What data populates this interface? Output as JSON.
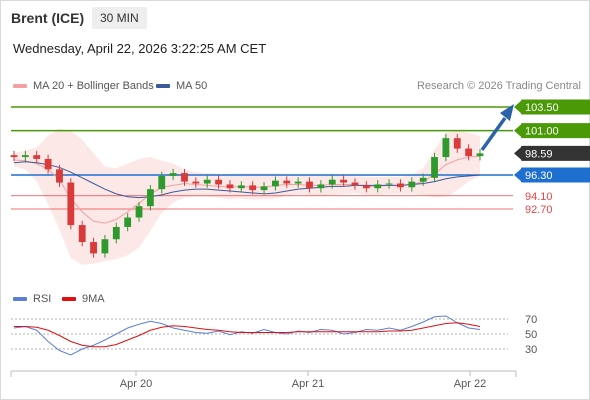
{
  "header": {
    "title": "Brent (ICE)",
    "interval": "30 MIN",
    "datetime": "Wednesday, April 22, 2026 3:22:25 AM CET"
  },
  "legend": {
    "ma20_label": "MA 20 + Bollinger Bands",
    "ma50_label": "MA 50",
    "copyright": "Research © 2026 Trading Central"
  },
  "rsi_legend": {
    "rsi_label": "RSI",
    "ma_label": "9MA"
  },
  "colors": {
    "resistance": "#4a9a08",
    "support": "#e84545",
    "pivot": "#1f6fd1",
    "current": "#333333",
    "candle_up": "#2e9a2e",
    "candle_down": "#d93a3a",
    "ma20": "#f2a0a0",
    "ma50": "#3a5a9a",
    "bollinger_fill": "#fde4e4",
    "arrow": "#2b62a8",
    "rsi": "#5b7fd6",
    "rsi_ma": "#e01010"
  },
  "chart_data": [
    {
      "type": "candlestick",
      "title": "Brent (ICE)",
      "interval": "30 MIN",
      "x_labels": [
        "Apr 20",
        "Apr 21",
        "Apr 22"
      ],
      "ylim": [
        87,
        106
      ],
      "levels": [
        {
          "label": "103.50",
          "value": 103.5,
          "kind": "resistance"
        },
        {
          "label": "101.00",
          "value": 101.0,
          "kind": "resistance"
        },
        {
          "label": "98.59",
          "value": 98.59,
          "kind": "current"
        },
        {
          "label": "96.30",
          "value": 96.3,
          "kind": "pivot"
        },
        {
          "label": "94.10",
          "value": 94.1,
          "kind": "support"
        },
        {
          "label": "92.70",
          "value": 92.7,
          "kind": "support"
        }
      ],
      "close_series": [
        98.2,
        98.4,
        98.0,
        96.9,
        95.5,
        91.0,
        89.2,
        88.0,
        89.5,
        90.8,
        91.8,
        93.0,
        94.8,
        96.2,
        96.5,
        95.6,
        95.4,
        95.8,
        95.3,
        94.9,
        95.2,
        94.7,
        95.1,
        95.7,
        95.4,
        95.6,
        94.9,
        95.3,
        95.8,
        95.5,
        95.2,
        94.9,
        95.3,
        95.4,
        95.0,
        95.6,
        96.0,
        98.2,
        100.2,
        99.1,
        98.3,
        98.59
      ],
      "ma20": [
        97.9,
        97.8,
        97.5,
        96.9,
        95.8,
        93.8,
        92.4,
        91.4,
        91.2,
        91.6,
        92.4,
        93.3,
        94.3,
        95.0,
        95.2,
        95.4,
        95.3,
        95.2,
        95.1,
        95.0,
        95.1,
        95.0,
        95.0,
        95.2,
        95.3,
        95.3,
        95.2,
        95.2,
        95.3,
        95.3,
        95.3,
        95.1,
        95.1,
        95.2,
        95.2,
        95.3,
        95.6,
        96.4,
        97.4,
        97.9,
        98.2,
        98.3
      ],
      "bollinger_upper": [
        98.6,
        98.9,
        99.2,
        100.5,
        101.2,
        101.0,
        100.0,
        98.6,
        97.2,
        97.0,
        97.5,
        98.0,
        98.2,
        97.8,
        97.5,
        96.9,
        96.6,
        96.5,
        96.4,
        96.4,
        96.5,
        96.5,
        96.5,
        96.5,
        96.4,
        96.3,
        96.3,
        96.3,
        96.4,
        96.3,
        96.2,
        96.1,
        96.1,
        96.1,
        96.1,
        96.3,
        97.0,
        99.0,
        100.8,
        101.0,
        100.8,
        100.4
      ],
      "bollinger_lower": [
        97.2,
        96.9,
        95.6,
        93.2,
        90.5,
        87.5,
        86.8,
        86.9,
        87.2,
        87.4,
        87.8,
        88.6,
        90.4,
        92.3,
        93.4,
        93.9,
        94.0,
        94.0,
        93.9,
        93.7,
        93.8,
        93.7,
        93.7,
        93.8,
        94.1,
        94.3,
        94.2,
        94.1,
        94.2,
        94.3,
        94.4,
        94.2,
        94.2,
        94.3,
        94.3,
        94.3,
        94.2,
        93.9,
        94.0,
        94.7,
        95.6,
        96.2
      ],
      "ma50": [
        97.6,
        97.7,
        97.6,
        97.4,
        97.1,
        96.6,
        96.0,
        95.4,
        94.8,
        94.3,
        94.0,
        93.9,
        94.0,
        94.2,
        94.5,
        94.7,
        94.8,
        94.8,
        94.7,
        94.6,
        94.5,
        94.4,
        94.3,
        94.4,
        94.6,
        94.8,
        94.9,
        95.0,
        95.1,
        95.1,
        95.2,
        95.2,
        95.2,
        95.2,
        95.2,
        95.3,
        95.4,
        95.6,
        95.9,
        96.1,
        96.2,
        96.3
      ]
    },
    {
      "type": "line",
      "title": "RSI",
      "ylim": [
        15,
        85
      ],
      "y_ticks": [
        "70",
        "50",
        "30"
      ],
      "series": [
        {
          "name": "RSI",
          "values": [
            58,
            60,
            55,
            40,
            28,
            22,
            30,
            35,
            42,
            50,
            58,
            63,
            67,
            64,
            58,
            55,
            52,
            51,
            54,
            49,
            53,
            51,
            56,
            52,
            50,
            54,
            52,
            56,
            55,
            50,
            52,
            56,
            55,
            58,
            55,
            60,
            66,
            73,
            74,
            65,
            58,
            56
          ]
        },
        {
          "name": "9MA",
          "values": [
            60,
            60,
            59,
            55,
            48,
            40,
            35,
            33,
            33,
            36,
            42,
            48,
            55,
            59,
            61,
            60,
            58,
            56,
            55,
            53,
            52,
            52,
            52,
            52,
            52,
            53,
            53,
            53,
            53,
            53,
            53,
            53,
            53,
            54,
            54,
            55,
            58,
            61,
            64,
            65,
            63,
            60
          ]
        }
      ]
    }
  ]
}
